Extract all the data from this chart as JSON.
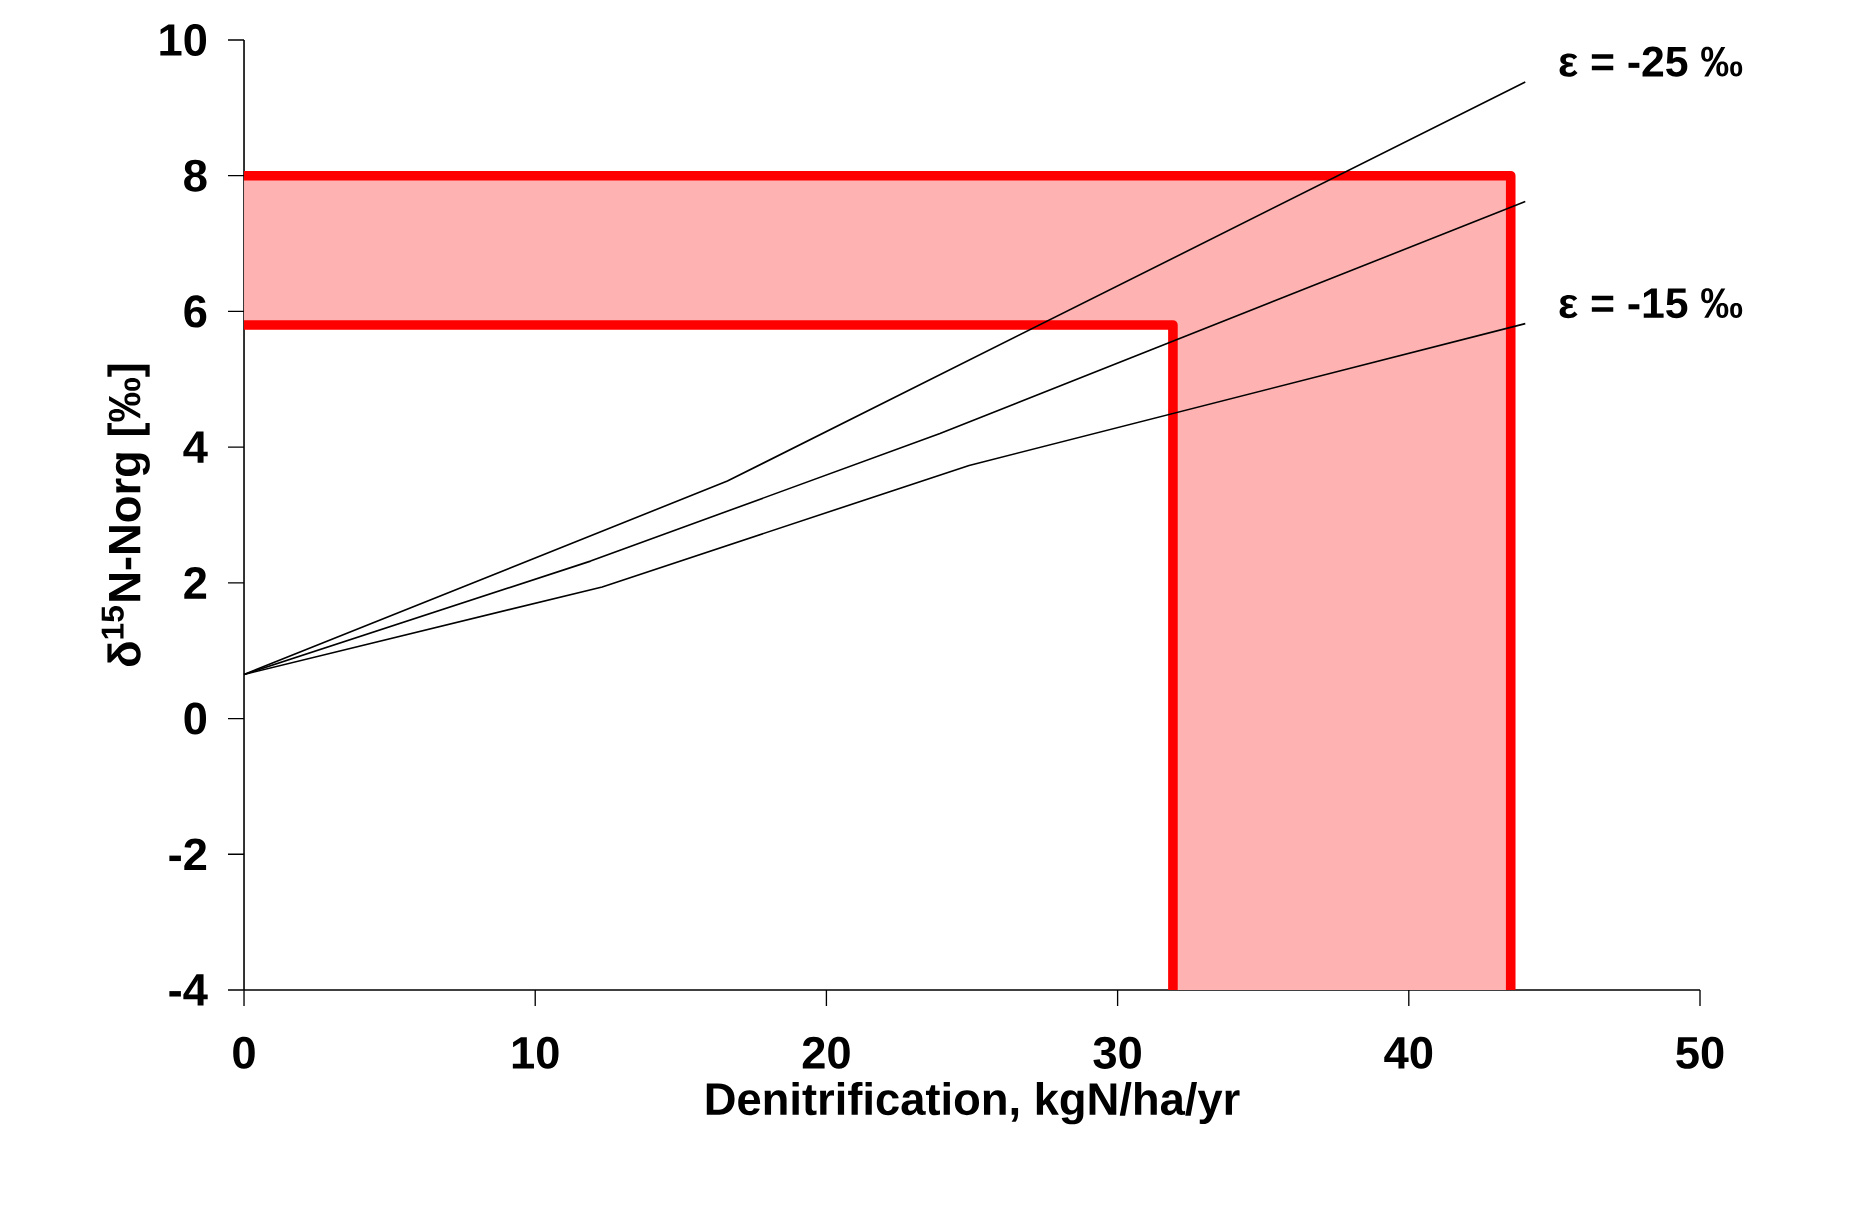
{
  "chart_data": {
    "type": "line",
    "xlabel": "Denitrification, kgN/ha/yr",
    "ylabel": "δ$^{15}$N-Norg [‰]",
    "xlim": [
      0,
      50
    ],
    "xticks": [
      0,
      10,
      20,
      30,
      40,
      50
    ],
    "ylim": [
      -4,
      10
    ],
    "yticks": [
      -4,
      -2,
      0,
      2,
      4,
      6,
      8,
      10
    ],
    "grid": false,
    "marker": "none",
    "series": [
      {
        "type": "step",
        "color": "#ff0000",
        "x": [
          0,
          31.9,
          43.5
        ],
        "values": [
          8,
          8,
          -4
        ],
        "lower": [
          5.8,
          -4,
          -4
        ],
        "upper": [
          8,
          8,
          8
        ]
      },
      {
        "type": "step",
        "color": "#ff0000",
        "x": [
          0,
          31.9
        ],
        "values": [
          5.8,
          -4
        ]
      },
      {
        "name": "ε = -25 ‰",
        "color": "#000000",
        "x": [
          0,
          16.6,
          44
        ],
        "values": [
          0.65,
          3.5,
          9.38
        ]
      },
      {
        "color": "#000000",
        "x": [
          0,
          11.9,
          23.9,
          44
        ],
        "values": [
          0.65,
          2.32,
          4.2,
          7.62
        ]
      },
      {
        "name": "ε = -15 ‰",
        "color": "#000000",
        "x": [
          0,
          12.3,
          24.9,
          44
        ],
        "values": [
          0.65,
          1.94,
          3.73,
          5.82
        ]
      }
    ]
  }
}
